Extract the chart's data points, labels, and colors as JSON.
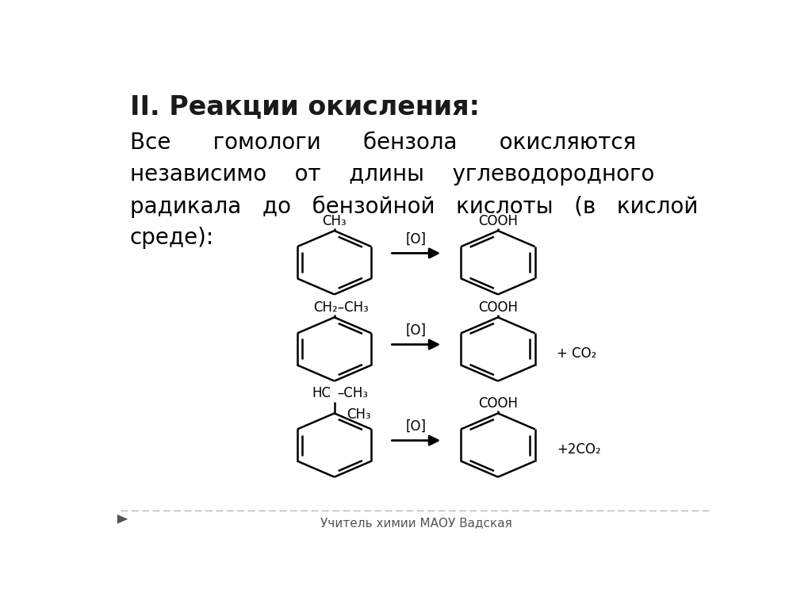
{
  "bg_color": "#ffffff",
  "title": "II. Реакции окисления:",
  "title_fontsize": 24,
  "title_color": "#1a1a1a",
  "body_lines": [
    "Все      гомологи      бензола      окисляются",
    "независимо    от    длины    углеводородного",
    "радикала   до   бензойной   кислоты   (в   кислой",
    "среде):"
  ],
  "body_fontsize": 20,
  "body_color": "#000000",
  "watermark": "Учитель химии МАОУ Вадская",
  "watermark_fontsize": 11,
  "watermark_color": "#555555",
  "reactions": [
    {
      "label_reactant": "CH₃",
      "label_product": "COOH",
      "byproduct": null,
      "rcx": 0.37,
      "rcy": 0.595,
      "pcx": 0.63,
      "pcy": 0.595
    },
    {
      "label_reactant": "CH₂–CH₃",
      "label_product": "COOH",
      "byproduct": "+ CO₂",
      "rcx": 0.37,
      "rcy": 0.41,
      "pcx": 0.63,
      "pcy": 0.41
    },
    {
      "label_reactant": "HC–CH₃",
      "label_reactant2": "CH₃",
      "label_product": "COOH",
      "byproduct": "+2CO₂",
      "rcx": 0.37,
      "rcy": 0.205,
      "pcx": 0.63,
      "pcy": 0.205
    }
  ]
}
